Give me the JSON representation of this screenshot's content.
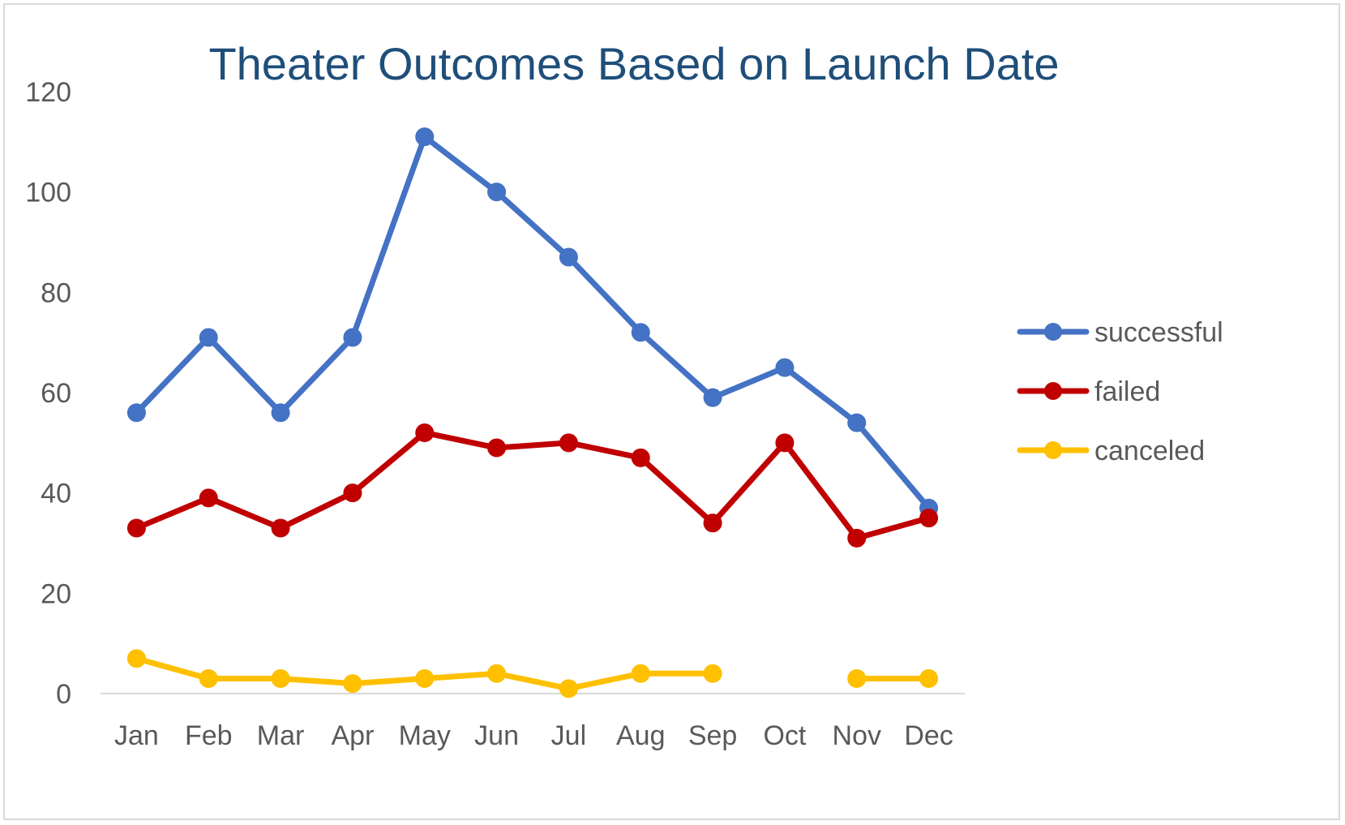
{
  "chart_data": {
    "type": "line",
    "title": "Theater Outcomes Based on Launch Date",
    "xlabel": "",
    "ylabel": "",
    "categories": [
      "Jan",
      "Feb",
      "Mar",
      "Apr",
      "May",
      "Jun",
      "Jul",
      "Aug",
      "Sep",
      "Oct",
      "Nov",
      "Dec"
    ],
    "ylim": [
      0,
      120
    ],
    "yticks": [
      0,
      20,
      40,
      60,
      80,
      100,
      120
    ],
    "grid": false,
    "legend": "right",
    "series": [
      {
        "name": "successful",
        "color": "#4472c4",
        "values": [
          56,
          71,
          56,
          71,
          111,
          100,
          87,
          72,
          59,
          65,
          54,
          37
        ]
      },
      {
        "name": "failed",
        "color": "#c00000",
        "values": [
          33,
          39,
          33,
          40,
          52,
          49,
          50,
          47,
          34,
          50,
          31,
          35
        ]
      },
      {
        "name": "canceled",
        "color": "#ffc000",
        "values": [
          7,
          3,
          3,
          2,
          3,
          4,
          1,
          4,
          4,
          null,
          3,
          3
        ]
      }
    ]
  }
}
